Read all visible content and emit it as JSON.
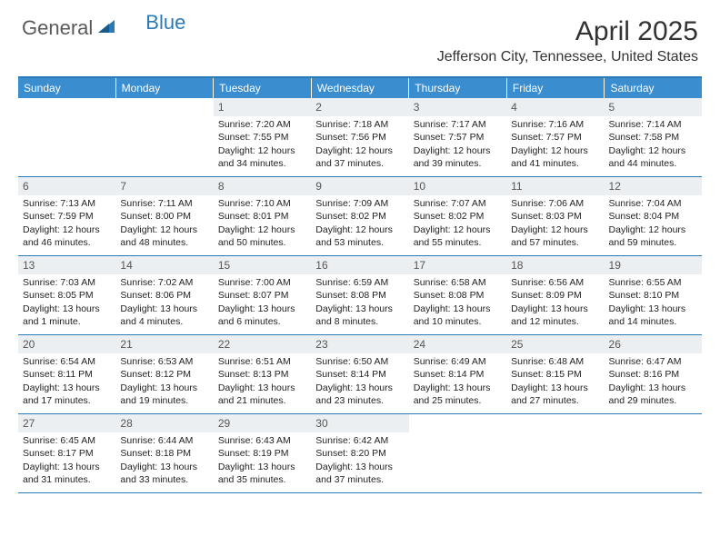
{
  "logo": {
    "text1": "General",
    "text2": "Blue"
  },
  "title": "April 2025",
  "location": "Jefferson City, Tennessee, United States",
  "colors": {
    "header_bar": "#3a8dce",
    "border": "#2a7ab8",
    "daynum_bg": "#eceff1"
  },
  "weekdays": [
    "Sunday",
    "Monday",
    "Tuesday",
    "Wednesday",
    "Thursday",
    "Friday",
    "Saturday"
  ],
  "weeks": [
    [
      {
        "empty": true
      },
      {
        "empty": true
      },
      {
        "num": "1",
        "sunrise": "7:20 AM",
        "sunset": "7:55 PM",
        "daylight": "12 hours and 34 minutes."
      },
      {
        "num": "2",
        "sunrise": "7:18 AM",
        "sunset": "7:56 PM",
        "daylight": "12 hours and 37 minutes."
      },
      {
        "num": "3",
        "sunrise": "7:17 AM",
        "sunset": "7:57 PM",
        "daylight": "12 hours and 39 minutes."
      },
      {
        "num": "4",
        "sunrise": "7:16 AM",
        "sunset": "7:57 PM",
        "daylight": "12 hours and 41 minutes."
      },
      {
        "num": "5",
        "sunrise": "7:14 AM",
        "sunset": "7:58 PM",
        "daylight": "12 hours and 44 minutes."
      }
    ],
    [
      {
        "num": "6",
        "sunrise": "7:13 AM",
        "sunset": "7:59 PM",
        "daylight": "12 hours and 46 minutes."
      },
      {
        "num": "7",
        "sunrise": "7:11 AM",
        "sunset": "8:00 PM",
        "daylight": "12 hours and 48 minutes."
      },
      {
        "num": "8",
        "sunrise": "7:10 AM",
        "sunset": "8:01 PM",
        "daylight": "12 hours and 50 minutes."
      },
      {
        "num": "9",
        "sunrise": "7:09 AM",
        "sunset": "8:02 PM",
        "daylight": "12 hours and 53 minutes."
      },
      {
        "num": "10",
        "sunrise": "7:07 AM",
        "sunset": "8:02 PM",
        "daylight": "12 hours and 55 minutes."
      },
      {
        "num": "11",
        "sunrise": "7:06 AM",
        "sunset": "8:03 PM",
        "daylight": "12 hours and 57 minutes."
      },
      {
        "num": "12",
        "sunrise": "7:04 AM",
        "sunset": "8:04 PM",
        "daylight": "12 hours and 59 minutes."
      }
    ],
    [
      {
        "num": "13",
        "sunrise": "7:03 AM",
        "sunset": "8:05 PM",
        "daylight": "13 hours and 1 minute."
      },
      {
        "num": "14",
        "sunrise": "7:02 AM",
        "sunset": "8:06 PM",
        "daylight": "13 hours and 4 minutes."
      },
      {
        "num": "15",
        "sunrise": "7:00 AM",
        "sunset": "8:07 PM",
        "daylight": "13 hours and 6 minutes."
      },
      {
        "num": "16",
        "sunrise": "6:59 AM",
        "sunset": "8:08 PM",
        "daylight": "13 hours and 8 minutes."
      },
      {
        "num": "17",
        "sunrise": "6:58 AM",
        "sunset": "8:08 PM",
        "daylight": "13 hours and 10 minutes."
      },
      {
        "num": "18",
        "sunrise": "6:56 AM",
        "sunset": "8:09 PM",
        "daylight": "13 hours and 12 minutes."
      },
      {
        "num": "19",
        "sunrise": "6:55 AM",
        "sunset": "8:10 PM",
        "daylight": "13 hours and 14 minutes."
      }
    ],
    [
      {
        "num": "20",
        "sunrise": "6:54 AM",
        "sunset": "8:11 PM",
        "daylight": "13 hours and 17 minutes."
      },
      {
        "num": "21",
        "sunrise": "6:53 AM",
        "sunset": "8:12 PM",
        "daylight": "13 hours and 19 minutes."
      },
      {
        "num": "22",
        "sunrise": "6:51 AM",
        "sunset": "8:13 PM",
        "daylight": "13 hours and 21 minutes."
      },
      {
        "num": "23",
        "sunrise": "6:50 AM",
        "sunset": "8:14 PM",
        "daylight": "13 hours and 23 minutes."
      },
      {
        "num": "24",
        "sunrise": "6:49 AM",
        "sunset": "8:14 PM",
        "daylight": "13 hours and 25 minutes."
      },
      {
        "num": "25",
        "sunrise": "6:48 AM",
        "sunset": "8:15 PM",
        "daylight": "13 hours and 27 minutes."
      },
      {
        "num": "26",
        "sunrise": "6:47 AM",
        "sunset": "8:16 PM",
        "daylight": "13 hours and 29 minutes."
      }
    ],
    [
      {
        "num": "27",
        "sunrise": "6:45 AM",
        "sunset": "8:17 PM",
        "daylight": "13 hours and 31 minutes."
      },
      {
        "num": "28",
        "sunrise": "6:44 AM",
        "sunset": "8:18 PM",
        "daylight": "13 hours and 33 minutes."
      },
      {
        "num": "29",
        "sunrise": "6:43 AM",
        "sunset": "8:19 PM",
        "daylight": "13 hours and 35 minutes."
      },
      {
        "num": "30",
        "sunrise": "6:42 AM",
        "sunset": "8:20 PM",
        "daylight": "13 hours and 37 minutes."
      },
      {
        "empty": true
      },
      {
        "empty": true
      },
      {
        "empty": true
      }
    ]
  ],
  "labels": {
    "sunrise_prefix": "Sunrise: ",
    "sunset_prefix": "Sunset: ",
    "daylight_prefix": "Daylight: "
  }
}
